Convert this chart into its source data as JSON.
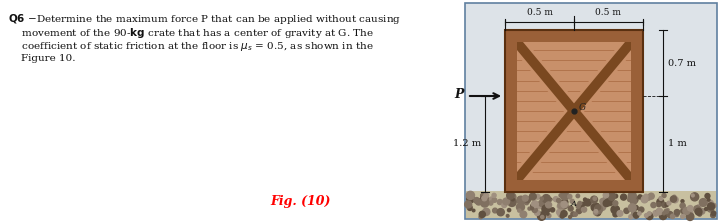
{
  "fig_width": 7.2,
  "fig_height": 2.22,
  "dpi": 100,
  "bg_color": "#ffffff",
  "text_lines": [
    [
      "Q6",
      "–Determine the maximum force P that can be applied without causing"
    ],
    [
      "",
      "movement of the 90-·kg crate that has a center of gravity at G. The"
    ],
    [
      "",
      "coefficient of static friction at the floor is μs = 0.5, as shown in the"
    ],
    [
      "",
      "Figure 10."
    ]
  ],
  "fig_label": "Fig. (10)",
  "dim_top_left": "0.5 m",
  "dim_top_right": "0.5 m",
  "dim_right_top": "0.7 m",
  "dim_right_bot": "1 m",
  "dim_left_vert": "1.2 m",
  "force_label": "P",
  "bg_diagram": "#dde3e8",
  "crate_fill": "#c8906a",
  "crate_band": "#9a6038",
  "crate_brace": "#7a4820",
  "crate_outline": "#5a3010",
  "plank_line": "#a86840",
  "ground_base": "#b8b090",
  "ground_dot": "#888070",
  "dim_color": "#111111",
  "force_color": "#111111",
  "border_rect_color": "#6080a0"
}
